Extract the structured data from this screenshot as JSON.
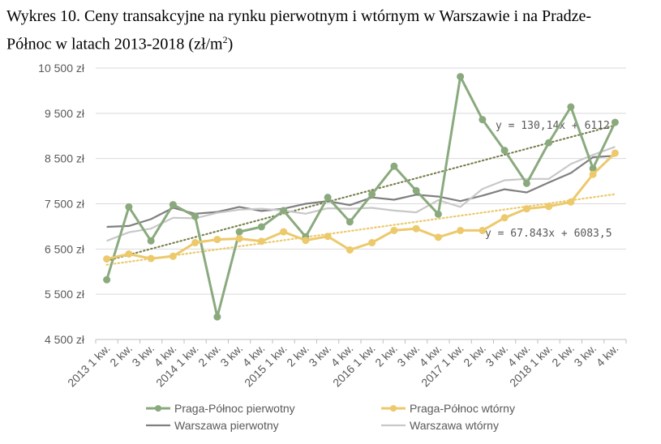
{
  "title_line1": "Wykres 10. Ceny transakcyjne na rynku pierwotnym i wtórnym w Warszawie i na Pradze-",
  "title_line2_prefix": "Północ w latach 2013-2018 (zł/m",
  "title_line2_sup": "2",
  "title_line2_suffix": ")",
  "chart_data": {
    "type": "line",
    "title": "Wykres 10. Ceny transakcyjne na rynku pierwotnym i wtórnym w Warszawie i na Pradze-Północ w latach 2013-2018 (zł/m2)",
    "categories": [
      "2013 1 kw.",
      "2 kw.",
      "3 kw.",
      "4 kw.",
      "2014 1 kw.",
      "2 kw.",
      "3 kw.",
      "4 kw.",
      "2015 1 kw.",
      "2 kw.",
      "3 kw.",
      "4 kw.",
      "2016 1 kw.",
      "2 kw.",
      "3 kw.",
      "4 kw.",
      "2017 1 kw.",
      "2 kw.",
      "3 kw.",
      "4 kw.",
      "2018 1 kw.",
      "2 kw.",
      "3 kw.",
      "4 kw."
    ],
    "ylim": [
      4500,
      10500
    ],
    "yticks": [
      4500,
      5500,
      6500,
      7500,
      8500,
      9500,
      10500
    ],
    "ytick_labels": [
      "4 500 zł",
      "5 500 zł",
      "6 500 zł",
      "7 500 zł",
      "8 500 zł",
      "9 500 zł",
      "10 500 zł"
    ],
    "grid": true,
    "legend": "bottom",
    "series": [
      {
        "name": "Praga-Północ pierwotny",
        "color": "#8aaa7e",
        "marker": true,
        "values": [
          5820,
          7430,
          6680,
          7480,
          7220,
          5000,
          6880,
          6990,
          7350,
          6770,
          7640,
          7100,
          7710,
          8330,
          7790,
          7270,
          10310,
          9360,
          8680,
          7950,
          8850,
          9640,
          8280,
          9300
        ]
      },
      {
        "name": "Praga-Północ wtórny",
        "color": "#ecc96b",
        "marker": true,
        "values": [
          6280,
          6390,
          6290,
          6340,
          6640,
          6710,
          6730,
          6670,
          6880,
          6690,
          6780,
          6480,
          6640,
          6910,
          6950,
          6760,
          6910,
          6910,
          7190,
          7390,
          7440,
          7540,
          8150,
          8620
        ]
      },
      {
        "name": "Warszawa pierwotny",
        "color": "#7f7f7f",
        "marker": false,
        "values": [
          6990,
          7010,
          7160,
          7410,
          7280,
          7320,
          7430,
          7340,
          7390,
          7500,
          7560,
          7470,
          7640,
          7590,
          7700,
          7660,
          7560,
          7680,
          7820,
          7750,
          7970,
          8180,
          8530,
          8560
        ]
      },
      {
        "name": "Warszawa wtórny",
        "color": "#c8c8c8",
        "marker": false,
        "values": [
          6680,
          6870,
          6950,
          7190,
          7180,
          7300,
          7370,
          7390,
          7350,
          7280,
          7400,
          7390,
          7410,
          7350,
          7310,
          7580,
          7430,
          7830,
          8020,
          8050,
          8050,
          8380,
          8580,
          8760
        ]
      }
    ],
    "trendlines": [
      {
        "series": "Praga-Północ pierwotny",
        "slope": 130.14,
        "intercept": 6112,
        "label": "y = 130,14x + 6112",
        "color": "#8aaa7e"
      },
      {
        "series": "Praga-Północ wtórny",
        "slope": 67.843,
        "intercept": 6083.5,
        "label": "y = 67.843x + 6083,5",
        "color": "#ecc96b"
      }
    ]
  }
}
